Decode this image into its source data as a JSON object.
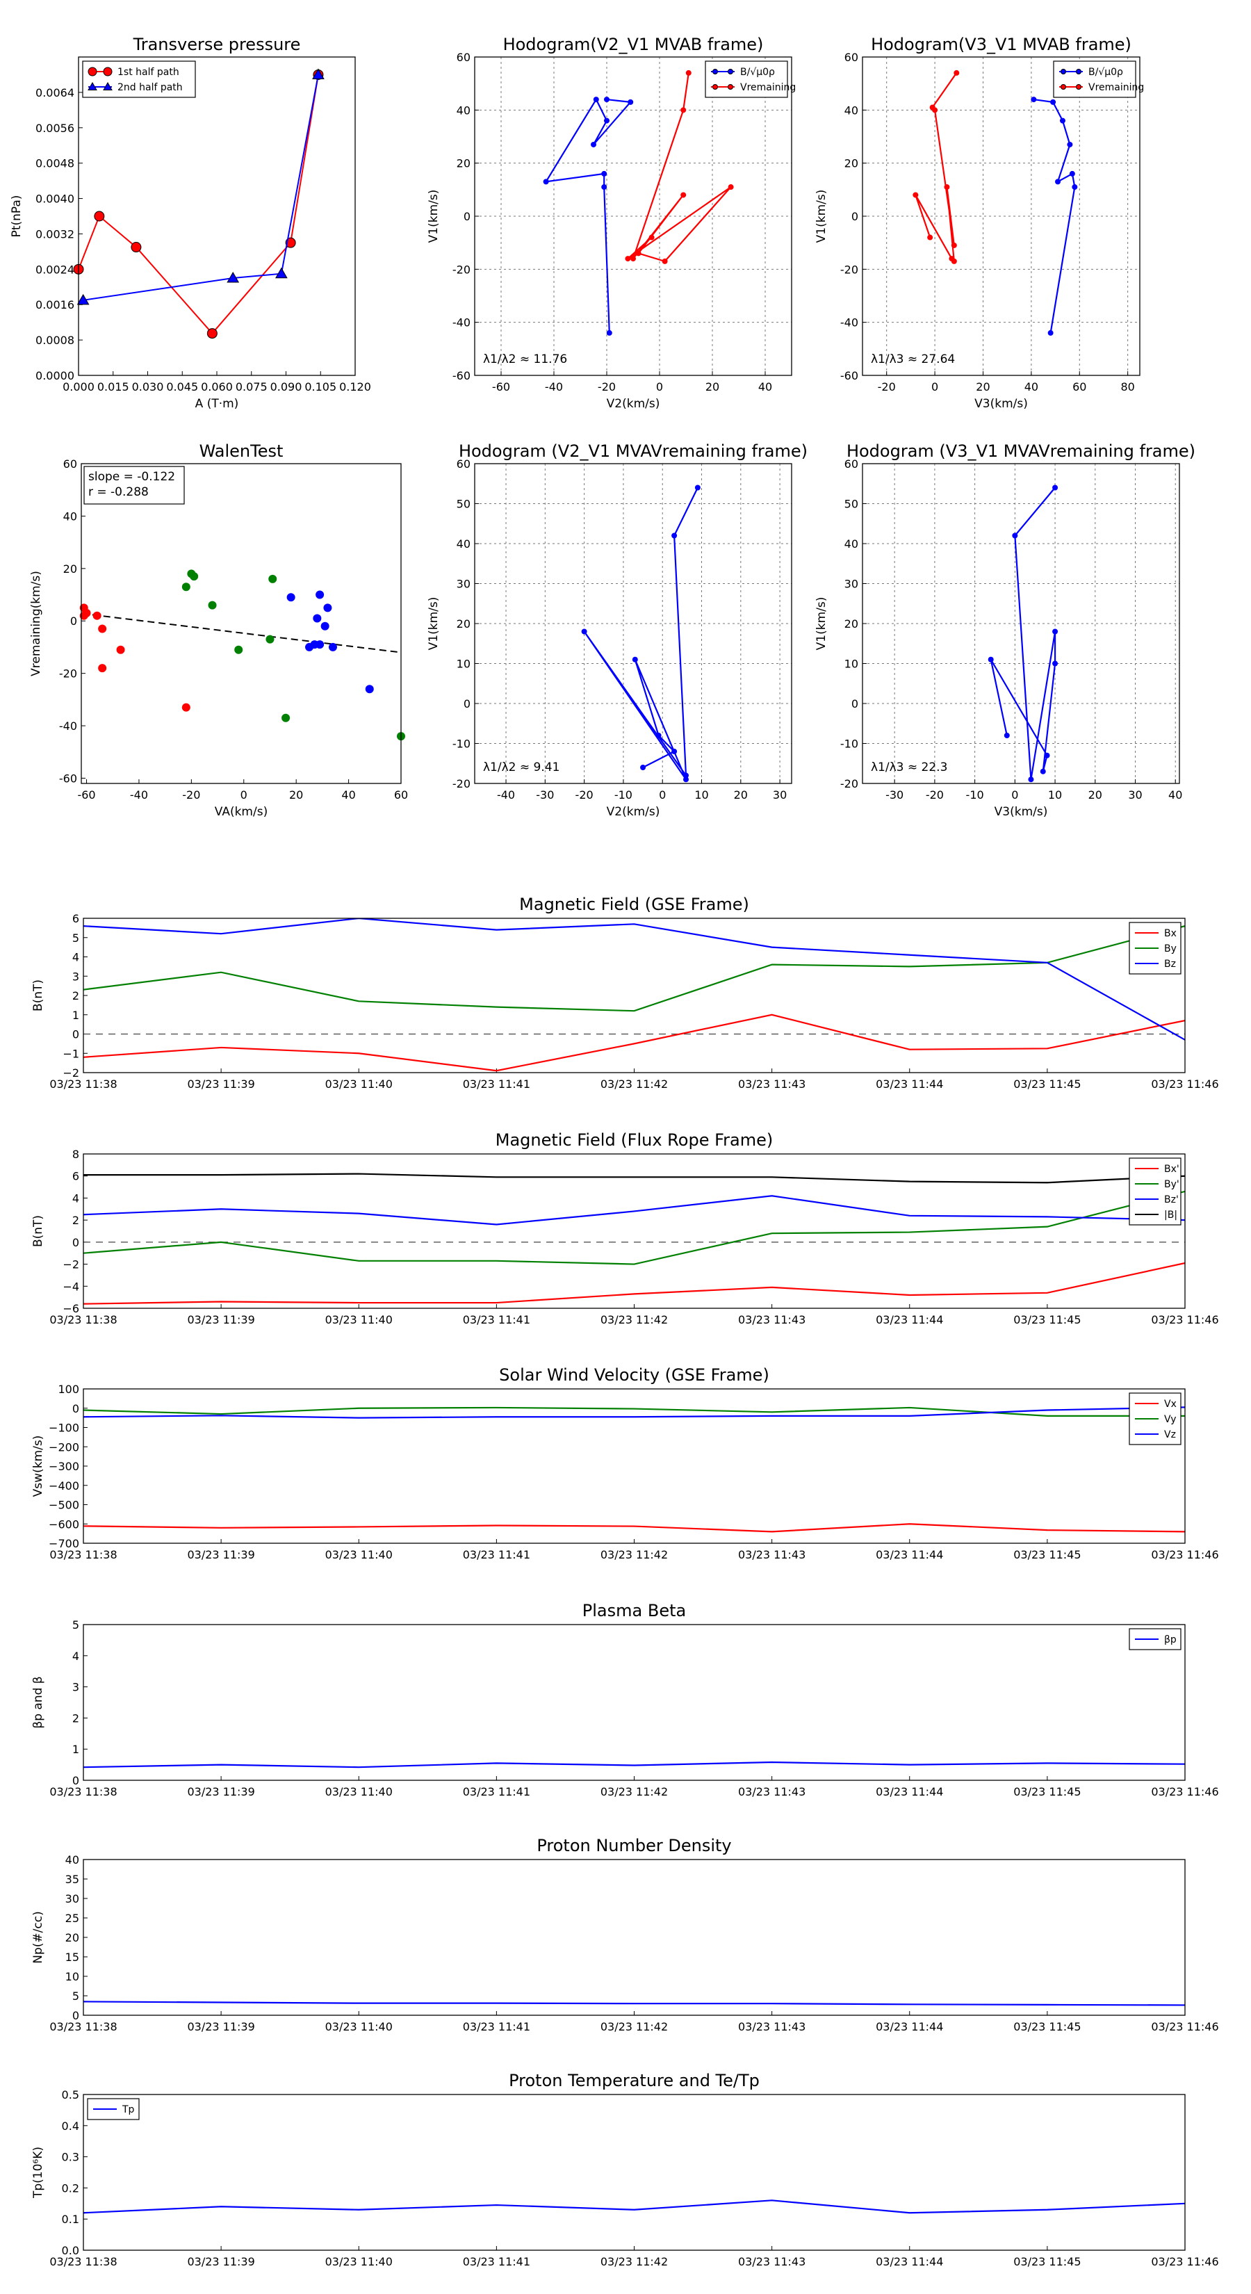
{
  "chart_data": [
    {
      "id": "tp",
      "type": "line",
      "title": "Transverse pressure",
      "xlabel": "A (T·m)",
      "ylabel": "Pt(nPa)",
      "xlim": [
        0.0,
        0.12
      ],
      "ylim": [
        0.0,
        0.0072
      ],
      "xticks": [
        "0.000",
        "0.015",
        "0.030",
        "0.045",
        "0.060",
        "0.075",
        "0.090",
        "0.105",
        "0.120"
      ],
      "yticks": [
        "0.0000",
        "0.0008",
        "0.0016",
        "0.0024",
        "0.0032",
        "0.0040",
        "0.0048",
        "0.0056",
        "0.0064"
      ],
      "grid": false,
      "legend": "top-left",
      "series": [
        {
          "name": "1st half path",
          "color": "#ff0000",
          "marker": "circle",
          "x": [
            0.0,
            0.009,
            0.025,
            0.058,
            0.092,
            0.104
          ],
          "y": [
            0.0024,
            0.0036,
            0.0029,
            0.00095,
            0.003,
            0.0068
          ]
        },
        {
          "name": "2nd half path",
          "color": "#0000ff",
          "marker": "triangle",
          "x": [
            0.104,
            0.088,
            0.067,
            0.002
          ],
          "y": [
            0.0068,
            0.0023,
            0.0022,
            0.0017
          ]
        }
      ]
    },
    {
      "id": "h1",
      "type": "line",
      "title": "Hodogram(V2_V1 MVAB frame)",
      "xlabel": "V2(km/s)",
      "ylabel": "V1(km/s)",
      "xlim": [
        -70,
        50
      ],
      "ylim": [
        -60,
        60
      ],
      "xticks": [
        "-60",
        "-40",
        "-20",
        "0",
        "20",
        "40"
      ],
      "yticks": [
        "-60",
        "-40",
        "-20",
        "0",
        "20",
        "40",
        "60"
      ],
      "grid": true,
      "legend": "top-right",
      "annotation": "λ1/λ2 ≈ 11.76",
      "series": [
        {
          "name": "B/√μ0ρ",
          "color": "#0000ff",
          "x": [
            -19,
            -21,
            -21,
            -43,
            -24,
            -20,
            -25,
            -11,
            -20
          ],
          "y": [
            -44,
            11,
            16,
            13,
            44,
            36,
            27,
            43,
            44
          ]
        },
        {
          "name": "Vremaining",
          "color": "#ff0000",
          "x": [
            11,
            9,
            -10,
            9,
            -8,
            2,
            27,
            -12,
            -3
          ],
          "y": [
            54,
            40,
            -16,
            8,
            -14,
            -17,
            11,
            -16,
            -8
          ]
        }
      ]
    },
    {
      "id": "h2",
      "type": "line",
      "title": "Hodogram(V3_V1 MVAB frame)",
      "xlabel": "V3(km/s)",
      "ylabel": "V1(km/s)",
      "xlim": [
        -30,
        85
      ],
      "ylim": [
        -60,
        60
      ],
      "xticks": [
        "-20",
        "0",
        "20",
        "40",
        "60",
        "80"
      ],
      "yticks": [
        "-60",
        "-40",
        "-20",
        "0",
        "20",
        "40",
        "60"
      ],
      "grid": true,
      "legend": "top-right",
      "annotation": "λ1/λ3 ≈ 27.64",
      "series": [
        {
          "name": "B/√μ0ρ",
          "color": "#0000ff",
          "x": [
            48,
            58,
            57,
            51,
            56,
            53,
            49,
            41
          ],
          "y": [
            -44,
            11,
            16,
            13,
            27,
            36,
            43,
            44
          ]
        },
        {
          "name": "Vremaining",
          "color": "#ff0000",
          "x": [
            9,
            -1,
            0,
            8,
            5,
            8,
            7,
            -8,
            -2
          ],
          "y": [
            54,
            41,
            40,
            -11,
            11,
            -17,
            -16,
            8,
            -8
          ]
        }
      ]
    },
    {
      "id": "walen",
      "type": "scatter",
      "title": "WalenTest",
      "xlabel": "VA(km/s)",
      "ylabel": "Vremaining(km/s)",
      "xlim": [
        -62,
        60
      ],
      "ylim": [
        -62,
        60
      ],
      "xticks": [
        "-60",
        "-40",
        "-20",
        "0",
        "20",
        "40",
        "60"
      ],
      "yticks": [
        "-60",
        "-40",
        "-20",
        "0",
        "20",
        "40",
        "60"
      ],
      "grid": false,
      "annotation": [
        "slope = -0.122",
        "r = -0.288"
      ],
      "fit": {
        "slope": -0.122,
        "intercept": -4.7
      },
      "series": [
        {
          "name": "red",
          "color": "#ff0000",
          "x": [
            -61,
            -61,
            -60,
            -56,
            -54,
            -54,
            -47,
            -22
          ],
          "y": [
            5,
            2,
            3,
            2,
            -3,
            -18,
            -11,
            -33
          ]
        },
        {
          "name": "green",
          "color": "#008000",
          "x": [
            -22,
            -20,
            -19,
            -12,
            -2,
            10,
            11,
            16,
            60
          ],
          "y": [
            13,
            18,
            17,
            6,
            -11,
            -7,
            16,
            -37,
            -44
          ]
        },
        {
          "name": "blue",
          "color": "#0000ff",
          "x": [
            18,
            25,
            27,
            28,
            29,
            29,
            31,
            32,
            34,
            48
          ],
          "y": [
            9,
            -10,
            -9,
            1,
            10,
            -9,
            -2,
            5,
            -10,
            -26
          ]
        }
      ]
    },
    {
      "id": "h3",
      "type": "line",
      "title": "Hodogram (V2_V1 MVAVremaining frame)",
      "xlabel": "V2(km/s)",
      "ylabel": "V1(km/s)",
      "xlim": [
        -48,
        33
      ],
      "ylim": [
        -20,
        60
      ],
      "xticks": [
        "-40",
        "-30",
        "-20",
        "-10",
        "0",
        "10",
        "20",
        "30"
      ],
      "yticks": [
        "-20",
        "-10",
        "0",
        "10",
        "20",
        "30",
        "40",
        "50",
        "60"
      ],
      "grid": true,
      "annotation": "λ1/λ2 ≈ 9.41",
      "series": [
        {
          "name": "path",
          "color": "#0000ff",
          "x": [
            9,
            3,
            6,
            -20,
            6,
            -7,
            -1,
            3,
            -5
          ],
          "y": [
            54,
            42,
            -18,
            18,
            -19,
            11,
            -8,
            -12,
            -16
          ]
        }
      ]
    },
    {
      "id": "h4",
      "type": "line",
      "title": "Hodogram (V3_V1 MVAVremaining frame)",
      "xlabel": "V3(km/s)",
      "ylabel": "V1(km/s)",
      "xlim": [
        -38,
        41
      ],
      "ylim": [
        -20,
        60
      ],
      "xticks": [
        "-30",
        "-20",
        "-10",
        "0",
        "10",
        "20",
        "30",
        "40"
      ],
      "yticks": [
        "-20",
        "-10",
        "0",
        "10",
        "20",
        "30",
        "40",
        "50",
        "60"
      ],
      "grid": true,
      "annotation": "λ1/λ3 ≈ 22.3",
      "series": [
        {
          "name": "path",
          "color": "#0000ff",
          "x": [
            10,
            0,
            4,
            10,
            10,
            7,
            8,
            -6,
            -2
          ],
          "y": [
            54,
            42,
            -19,
            18,
            10,
            -17,
            -13,
            11,
            -8
          ]
        }
      ]
    },
    {
      "id": "bgse",
      "type": "line",
      "title": "Magnetic Field (GSE Frame)",
      "ylabel": "B(nT)",
      "x": [
        "03/23 11:38",
        "03/23 11:39",
        "03/23 11:40",
        "03/23 11:41",
        "03/23 11:42",
        "03/23 11:43",
        "03/23 11:44",
        "03/23 11:45",
        "03/23 11:46"
      ],
      "ylim": [
        -2,
        6
      ],
      "yticks": [
        "−2",
        "−1",
        "0",
        "1",
        "2",
        "3",
        "4",
        "5",
        "6"
      ],
      "zero_line": true,
      "legend": "top-right",
      "series": [
        {
          "name": "Bx",
          "color": "#ff0000",
          "values": [
            -1.2,
            -0.7,
            -1.0,
            -1.9,
            -0.5,
            1.0,
            -0.8,
            -0.75,
            0.7
          ]
        },
        {
          "name": "By",
          "color": "#008000",
          "values": [
            2.3,
            3.2,
            1.7,
            1.4,
            1.2,
            3.6,
            3.5,
            3.7,
            5.6
          ]
        },
        {
          "name": "Bz",
          "color": "#0000ff",
          "values": [
            5.6,
            5.2,
            6.0,
            5.4,
            5.7,
            4.5,
            4.1,
            3.7,
            -0.3
          ]
        }
      ]
    },
    {
      "id": "bfr",
      "type": "line",
      "title": "Magnetic Field (Flux Rope Frame)",
      "ylabel": "B(nT)",
      "x": [
        "03/23 11:38",
        "03/23 11:39",
        "03/23 11:40",
        "03/23 11:41",
        "03/23 11:42",
        "03/23 11:43",
        "03/23 11:44",
        "03/23 11:45",
        "03/23 11:46"
      ],
      "ylim": [
        -6,
        8
      ],
      "yticks": [
        "−6",
        "−4",
        "−2",
        "0",
        "2",
        "4",
        "6",
        "8"
      ],
      "zero_line": true,
      "legend": "top-right",
      "series": [
        {
          "name": "Bx'",
          "color": "#ff0000",
          "values": [
            -5.6,
            -5.4,
            -5.5,
            -5.5,
            -4.7,
            -4.1,
            -4.8,
            -4.6,
            -1.9
          ]
        },
        {
          "name": "By'",
          "color": "#008000",
          "values": [
            -1.0,
            0.0,
            -1.7,
            -1.7,
            -2.0,
            0.8,
            0.9,
            1.4,
            4.6
          ]
        },
        {
          "name": "Bz'",
          "color": "#0000ff",
          "values": [
            2.5,
            3.0,
            2.6,
            1.6,
            2.8,
            4.2,
            2.4,
            2.3,
            2.0
          ]
        },
        {
          "name": "|B|",
          "color": "#000000",
          "values": [
            6.1,
            6.1,
            6.2,
            5.9,
            5.9,
            5.9,
            5.5,
            5.4,
            6.0
          ]
        }
      ]
    },
    {
      "id": "vsw",
      "type": "line",
      "title": "Solar Wind Velocity (GSE Frame)",
      "ylabel": "Vsw(km/s)",
      "x": [
        "03/23 11:38",
        "03/23 11:39",
        "03/23 11:40",
        "03/23 11:41",
        "03/23 11:42",
        "03/23 11:43",
        "03/23 11:44",
        "03/23 11:45",
        "03/23 11:46"
      ],
      "ylim": [
        -700,
        100
      ],
      "yticks": [
        "−700",
        "−600",
        "−500",
        "−400",
        "−300",
        "−200",
        "−100",
        "0",
        "100"
      ],
      "legend": "top-right",
      "series": [
        {
          "name": "Vx",
          "color": "#ff0000",
          "values": [
            -611,
            -620,
            -615,
            -608,
            -612,
            -640,
            -600,
            -632,
            -640
          ]
        },
        {
          "name": "Vy",
          "color": "#008000",
          "values": [
            -10,
            -30,
            0,
            3,
            -3,
            -20,
            3,
            -40,
            -40
          ]
        },
        {
          "name": "Vz",
          "color": "#0000ff",
          "values": [
            -45,
            -38,
            -50,
            -45,
            -45,
            -40,
            -40,
            -10,
            5
          ]
        }
      ]
    },
    {
      "id": "beta",
      "type": "line",
      "title": "Plasma Beta",
      "ylabel": "βp and β",
      "x": [
        "03/23 11:38",
        "03/23 11:39",
        "03/23 11:40",
        "03/23 11:41",
        "03/23 11:42",
        "03/23 11:43",
        "03/23 11:44",
        "03/23 11:45",
        "03/23 11:46"
      ],
      "ylim": [
        0,
        5
      ],
      "yticks": [
        "0",
        "1",
        "2",
        "3",
        "4",
        "5"
      ],
      "legend": "top-right",
      "series": [
        {
          "name": "βp",
          "color": "#0000ff",
          "values": [
            0.42,
            0.5,
            0.42,
            0.55,
            0.48,
            0.58,
            0.5,
            0.55,
            0.52
          ]
        }
      ]
    },
    {
      "id": "np",
      "type": "line",
      "title": "Proton Number Density",
      "ylabel": "Np(#/cc)",
      "x": [
        "03/23 11:38",
        "03/23 11:39",
        "03/23 11:40",
        "03/23 11:41",
        "03/23 11:42",
        "03/23 11:43",
        "03/23 11:44",
        "03/23 11:45",
        "03/23 11:46"
      ],
      "ylim": [
        0,
        40
      ],
      "yticks": [
        "0",
        "5",
        "10",
        "15",
        "20",
        "25",
        "30",
        "35",
        "40"
      ],
      "series": [
        {
          "name": "Np",
          "color": "#0000ff",
          "values": [
            3.5,
            3.3,
            3.1,
            3.1,
            3.0,
            3.0,
            2.8,
            2.7,
            2.6
          ]
        }
      ]
    },
    {
      "id": "tp2",
      "type": "line",
      "title": "Proton Temperature and Te/Tp",
      "ylabel": "Tp(10⁶K)",
      "x": [
        "03/23 11:38",
        "03/23 11:39",
        "03/23 11:40",
        "03/23 11:41",
        "03/23 11:42",
        "03/23 11:43",
        "03/23 11:44",
        "03/23 11:45",
        "03/23 11:46"
      ],
      "ylim": [
        0,
        0.5
      ],
      "yticks": [
        "0.0",
        "0.1",
        "0.2",
        "0.3",
        "0.4",
        "0.5"
      ],
      "legend": "top-left",
      "series": [
        {
          "name": "Tp",
          "color": "#0000ff",
          "values": [
            0.12,
            0.14,
            0.13,
            0.145,
            0.13,
            0.16,
            0.12,
            0.13,
            0.15
          ]
        }
      ]
    }
  ]
}
